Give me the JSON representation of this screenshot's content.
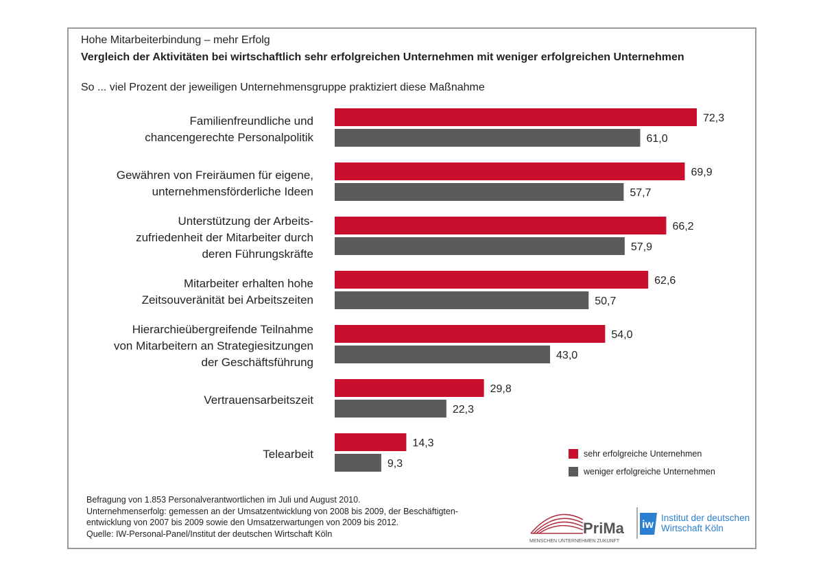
{
  "header": {
    "kicker": "Hohe Mitarbeiterbindung – mehr Erfolg",
    "title": "Vergleich der Aktivitäten bei wirtschaftlich sehr erfolgreichen Unternehmen mit weniger erfolgreichen Unternehmen",
    "subtitle": "So ... viel Prozent der jeweiligen Unternehmensgruppe praktiziert diese Maßnahme"
  },
  "colors": {
    "series1": "#c8102e",
    "series2": "#5b5b5b"
  },
  "chart_data": {
    "type": "bar",
    "orientation": "horizontal",
    "categories": [
      [
        "Familienfreundliche und",
        "chancengerechte Personalpolitik"
      ],
      [
        "Gewähren von Freiräumen für eigene,",
        "unternehmensförderliche Ideen"
      ],
      [
        "Unterstützung der Arbeits-",
        "zufriedenheit der Mitarbeiter durch",
        "deren Führungskräfte"
      ],
      [
        "Mitarbeiter erhalten hohe",
        "Zeitsouveränität bei Arbeitszeiten"
      ],
      [
        "Hierarchieübergreifende Teilnahme",
        "von Mitarbeitern an Strategiesitzungen",
        "der Geschäftsführung"
      ],
      [
        "Vertrauensarbeitszeit"
      ],
      [
        "Telearbeit"
      ]
    ],
    "series": [
      {
        "name": "sehr erfolgreiche Unternehmen",
        "values": [
          72.3,
          69.9,
          66.2,
          62.6,
          54.0,
          29.8,
          14.3
        ],
        "labels": [
          "72,3",
          "69,9",
          "66,2",
          "62,6",
          "54,0",
          "29,8",
          "14,3"
        ]
      },
      {
        "name": "weniger erfolgreiche Unternehmen",
        "values": [
          61.0,
          57.7,
          57.9,
          50.7,
          43.0,
          22.3,
          9.3
        ],
        "labels": [
          "61,0",
          "57,7",
          "57,9",
          "50,7",
          "43,0",
          "22,3",
          "9,3"
        ]
      }
    ],
    "xlim": [
      0,
      100
    ],
    "grid": false,
    "legend": "bottom-right"
  },
  "footer": {
    "lines": [
      "Befragung von 1.853 Personalverantwortlichen im Juli und August 2010.",
      "Unternehmenserfolg: gemessen an der Umsatzentwicklung von 2008 bis 2009, der Beschäftigten-",
      "entwicklung von 2007 bis 2009 sowie den Umsatzerwartungen von 2009 bis 2012.",
      "Quelle: IW-Personal-Panel/Institut der deutschen Wirtschaft Köln"
    ]
  },
  "logos": {
    "prima": {
      "name": "PriMa",
      "tagline": "MENSCHEN UNTERNEHMEN ZUKUNFT"
    },
    "iw": {
      "name": "Institut der deutschen Wirtschaft Köln",
      "line1": "Institut der deutschen",
      "line2": "Wirtschaft Köln"
    }
  }
}
